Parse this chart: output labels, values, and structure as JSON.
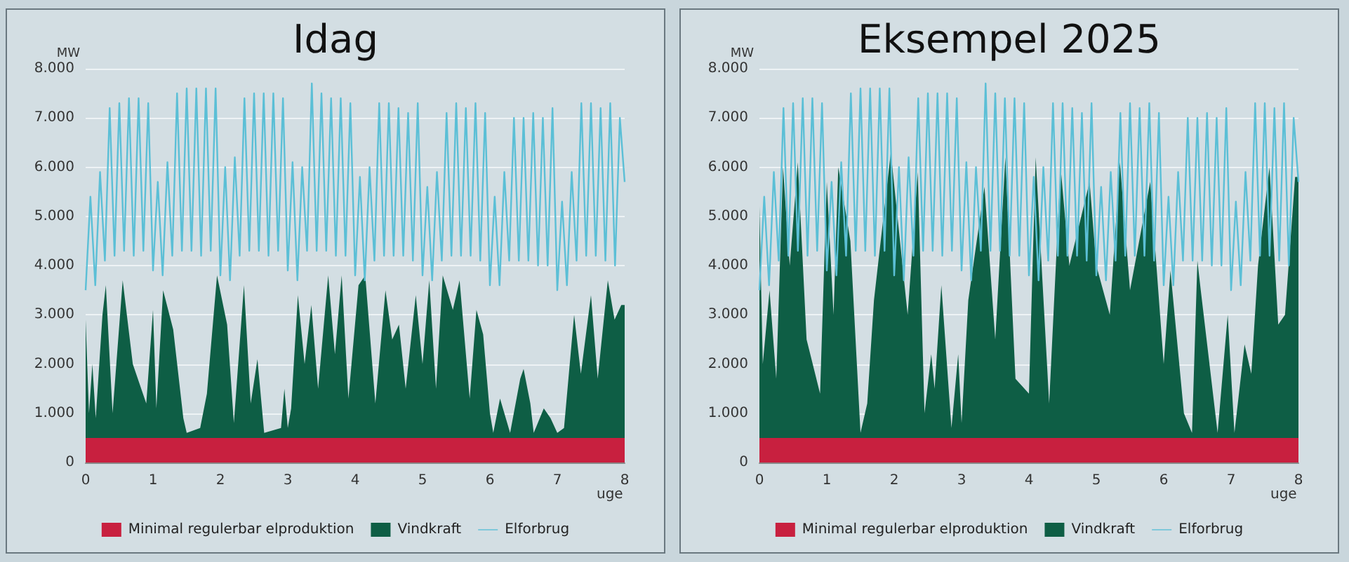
{
  "chart_data": [
    {
      "type": "area",
      "title": "Idag",
      "ylabel": "MW",
      "xlabel": "uge",
      "stacked": true,
      "legend": "bottom",
      "grid": "y",
      "xlim": [
        0,
        8
      ],
      "xticks": [
        0,
        1,
        2,
        3,
        4,
        5,
        6,
        7,
        8
      ],
      "ylim": [
        0,
        8000
      ],
      "yticks": [
        0,
        {
          "value": 1000,
          "label": "1.000"
        },
        {
          "value": 2000,
          "label": "2.000"
        },
        {
          "value": 3000,
          "label": "3.000"
        },
        {
          "value": 4000,
          "label": "4.000"
        },
        {
          "value": 5000,
          "label": "5.000"
        },
        {
          "value": 6000,
          "label": "6.000"
        },
        {
          "value": 7000,
          "label": "7.000"
        },
        {
          "value": 8000,
          "label": "8.000"
        }
      ],
      "series": [
        {
          "name": "Minimal regulerbar elproduktion",
          "color": "#c8203f",
          "x": [
            0,
            0.05,
            0.1,
            0.15,
            0.25,
            0.3,
            0.4,
            0.55,
            0.7,
            0.9,
            1.0,
            1.05,
            1.15,
            1.3,
            1.45,
            1.5,
            1.7,
            1.8,
            1.95,
            2.1,
            2.2,
            2.35,
            2.45,
            2.55,
            2.65,
            2.9,
            2.95,
            3.0,
            3.05,
            3.15,
            3.25,
            3.35,
            3.45,
            3.6,
            3.7,
            3.8,
            3.9,
            4.05,
            4.15,
            4.3,
            4.45,
            4.55,
            4.65,
            4.75,
            4.9,
            5.0,
            5.1,
            5.2,
            5.3,
            5.45,
            5.55,
            5.7,
            5.8,
            5.9,
            6.0,
            6.05,
            6.15,
            6.3,
            6.45,
            6.5,
            6.6,
            6.65,
            6.8,
            6.9,
            7.0,
            7.1,
            7.25,
            7.35,
            7.5,
            7.6,
            7.75,
            7.85,
            7.95,
            8.0
          ],
          "values": [
            500,
            500,
            500,
            500,
            500,
            500,
            500,
            500,
            500,
            500,
            500,
            500,
            500,
            500,
            500,
            500,
            500,
            500,
            500,
            500,
            500,
            500,
            500,
            500,
            500,
            500,
            500,
            500,
            500,
            500,
            500,
            500,
            500,
            500,
            500,
            500,
            500,
            500,
            500,
            500,
            500,
            500,
            500,
            500,
            500,
            500,
            500,
            500,
            500,
            500,
            500,
            500,
            500,
            500,
            500,
            500,
            500,
            500,
            500,
            500,
            500,
            500,
            500,
            500,
            500,
            500,
            500,
            500,
            500,
            500,
            500,
            500,
            500,
            500
          ]
        },
        {
          "name": "Vindkraft",
          "color": "#0e5e45",
          "x": [
            0,
            0.05,
            0.1,
            0.15,
            0.25,
            0.3,
            0.4,
            0.55,
            0.7,
            0.9,
            1.0,
            1.05,
            1.15,
            1.3,
            1.45,
            1.5,
            1.7,
            1.8,
            1.95,
            2.1,
            2.2,
            2.35,
            2.45,
            2.55,
            2.65,
            2.9,
            2.95,
            3.0,
            3.05,
            3.15,
            3.25,
            3.35,
            3.45,
            3.6,
            3.7,
            3.8,
            3.9,
            4.05,
            4.15,
            4.3,
            4.45,
            4.55,
            4.65,
            4.75,
            4.9,
            5.0,
            5.1,
            5.2,
            5.3,
            5.45,
            5.55,
            5.7,
            5.8,
            5.9,
            6.0,
            6.05,
            6.15,
            6.3,
            6.45,
            6.5,
            6.6,
            6.65,
            6.8,
            6.9,
            7.0,
            7.1,
            7.25,
            7.35,
            7.5,
            7.6,
            7.75,
            7.85,
            7.95,
            8.0
          ],
          "values": [
            2400,
            500,
            1500,
            400,
            2500,
            3100,
            500,
            3200,
            1500,
            700,
            2600,
            600,
            3000,
            2200,
            400,
            100,
            200,
            900,
            3300,
            2300,
            300,
            3100,
            700,
            1600,
            100,
            200,
            1000,
            200,
            600,
            2900,
            1500,
            2700,
            1000,
            3300,
            1700,
            3300,
            800,
            3100,
            3300,
            700,
            3000,
            2000,
            2300,
            1000,
            2900,
            1500,
            3200,
            1000,
            3300,
            2600,
            3200,
            800,
            2600,
            2100,
            500,
            100,
            800,
            100,
            1200,
            1400,
            700,
            100,
            600,
            400,
            100,
            200,
            2500,
            1300,
            2900,
            1200,
            3200,
            2400,
            2700,
            2700
          ]
        },
        {
          "name": "Elforbrug",
          "type": "line",
          "color": "#5bbfd6",
          "x": [
            0,
            0.071,
            0.143,
            0.214,
            0.286,
            0.357,
            0.429,
            0.5,
            0.571,
            0.643,
            0.714,
            0.786,
            0.857,
            0.929,
            1,
            1.071,
            1.143,
            1.214,
            1.286,
            1.357,
            1.429,
            1.5,
            1.571,
            1.643,
            1.714,
            1.786,
            1.857,
            1.929,
            2,
            2.071,
            2.143,
            2.214,
            2.286,
            2.357,
            2.429,
            2.5,
            2.571,
            2.643,
            2.714,
            2.786,
            2.857,
            2.929,
            3,
            3.071,
            3.143,
            3.214,
            3.286,
            3.357,
            3.429,
            3.5,
            3.571,
            3.643,
            3.714,
            3.786,
            3.857,
            3.929,
            4,
            4.071,
            4.143,
            4.214,
            4.286,
            4.357,
            4.429,
            4.5,
            4.571,
            4.643,
            4.714,
            4.786,
            4.857,
            4.929,
            5,
            5.071,
            5.143,
            5.214,
            5.286,
            5.357,
            5.429,
            5.5,
            5.571,
            5.643,
            5.714,
            5.786,
            5.857,
            5.929,
            6,
            6.071,
            6.143,
            6.214,
            6.286,
            6.357,
            6.429,
            6.5,
            6.571,
            6.643,
            6.714,
            6.786,
            6.857,
            6.929,
            7,
            7.071,
            7.143,
            7.214,
            7.286,
            7.357,
            7.429,
            7.5,
            7.571,
            7.643,
            7.714,
            7.786,
            7.857,
            7.929,
            8
          ],
          "values": [
            3500,
            5400,
            3600,
            5900,
            4100,
            7200,
            4200,
            7300,
            4300,
            7400,
            4200,
            7400,
            4300,
            7300,
            3900,
            5700,
            3800,
            6100,
            4200,
            7500,
            4300,
            7600,
            4300,
            7600,
            4200,
            7600,
            4300,
            7600,
            3800,
            6000,
            3700,
            6200,
            4200,
            7400,
            4300,
            7500,
            4300,
            7500,
            4200,
            7500,
            4300,
            7400,
            3900,
            6100,
            3700,
            6000,
            4300,
            7700,
            4300,
            7500,
            4300,
            7400,
            4200,
            7400,
            4200,
            7300,
            3800,
            5800,
            3700,
            6000,
            4100,
            7300,
            4200,
            7300,
            4200,
            7200,
            4200,
            7100,
            4100,
            7300,
            3800,
            5600,
            3700,
            5900,
            4100,
            7100,
            4200,
            7300,
            4200,
            7200,
            4200,
            7300,
            4100,
            7100,
            3600,
            5400,
            3600,
            5900,
            4100,
            7000,
            4100,
            7000,
            4100,
            7100,
            4000,
            7000,
            4000,
            7200,
            3500,
            5300,
            3600,
            5900,
            4100,
            7300,
            4200,
            7300,
            4200,
            7200,
            4100,
            7300,
            4000,
            7000,
            5700
          ]
        }
      ]
    },
    {
      "type": "area",
      "title": "Eksempel 2025",
      "ylabel": "MW",
      "xlabel": "uge",
      "stacked": true,
      "legend": "bottom",
      "grid": "y",
      "xlim": [
        0,
        8
      ],
      "xticks": [
        0,
        1,
        2,
        3,
        4,
        5,
        6,
        7,
        8
      ],
      "ylim": [
        0,
        8000
      ],
      "yticks": [
        0,
        {
          "value": 1000,
          "label": "1.000"
        },
        {
          "value": 2000,
          "label": "2.000"
        },
        {
          "value": 3000,
          "label": "3.000"
        },
        {
          "value": 4000,
          "label": "4.000"
        },
        {
          "value": 5000,
          "label": "5.000"
        },
        {
          "value": 6000,
          "label": "6.000"
        },
        {
          "value": 7000,
          "label": "7.000"
        },
        {
          "value": 8000,
          "label": "8.000"
        }
      ],
      "series": [
        {
          "name": "Minimal regulerbar elproduktion",
          "color": "#c8203f",
          "x": [
            0,
            0.05,
            0.15,
            0.25,
            0.35,
            0.45,
            0.57,
            0.7,
            0.9,
            1.0,
            1.1,
            1.17,
            1.35,
            1.5,
            1.6,
            1.7,
            1.95,
            2.2,
            2.35,
            2.45,
            2.55,
            2.6,
            2.7,
            2.85,
            2.95,
            3.0,
            3.1,
            3.34,
            3.5,
            3.65,
            3.8,
            4.0,
            4.1,
            4.3,
            4.47,
            4.6,
            4.9,
            5.0,
            5.2,
            5.35,
            5.5,
            5.8,
            6.0,
            6.1,
            6.3,
            6.42,
            6.5,
            6.55,
            6.8,
            6.95,
            7.05,
            7.2,
            7.3,
            7.4,
            7.57,
            7.7,
            7.8,
            7.95,
            8.0
          ],
          "values": [
            500,
            500,
            500,
            500,
            500,
            500,
            500,
            500,
            500,
            500,
            500,
            500,
            500,
            500,
            500,
            500,
            500,
            500,
            500,
            500,
            500,
            500,
            500,
            500,
            500,
            500,
            500,
            500,
            500,
            500,
            500,
            500,
            500,
            500,
            500,
            500,
            500,
            500,
            500,
            500,
            500,
            500,
            500,
            500,
            500,
            500,
            500,
            500,
            500,
            500,
            500,
            500,
            500,
            500,
            500,
            500,
            500,
            500,
            500
          ]
        },
        {
          "name": "Vindkraft",
          "color": "#0e5e45",
          "x": [
            0,
            0.05,
            0.15,
            0.25,
            0.35,
            0.45,
            0.57,
            0.7,
            0.9,
            1.0,
            1.1,
            1.17,
            1.35,
            1.5,
            1.6,
            1.7,
            1.95,
            2.2,
            2.35,
            2.45,
            2.55,
            2.6,
            2.7,
            2.85,
            2.95,
            3.0,
            3.1,
            3.34,
            3.5,
            3.65,
            3.8,
            4.0,
            4.1,
            4.3,
            4.47,
            4.6,
            4.9,
            5.0,
            5.2,
            5.35,
            5.5,
            5.8,
            6.0,
            6.1,
            6.3,
            6.42,
            6.5,
            6.55,
            6.8,
            6.95,
            7.05,
            7.2,
            7.3,
            7.4,
            7.57,
            7.7,
            7.8,
            7.95,
            8.0
          ],
          "values": [
            4700,
            1500,
            3000,
            1200,
            5500,
            3500,
            5600,
            2000,
            900,
            5200,
            2500,
            5500,
            4000,
            100,
            700,
            2800,
            5800,
            2500,
            5400,
            500,
            1700,
            1000,
            3100,
            200,
            1700,
            300,
            2800,
            5100,
            2000,
            5700,
            1200,
            900,
            5700,
            700,
            5500,
            3500,
            5200,
            3500,
            2500,
            5600,
            3000,
            5200,
            1500,
            3400,
            500,
            100,
            3600,
            3000,
            100,
            2500,
            100,
            1900,
            1300,
            3500,
            5500,
            2300,
            2500,
            5300,
            5300
          ]
        },
        {
          "name": "Elforbrug",
          "type": "line",
          "color": "#5bbfd6",
          "x": [
            0,
            0.071,
            0.143,
            0.214,
            0.286,
            0.357,
            0.429,
            0.5,
            0.571,
            0.643,
            0.714,
            0.786,
            0.857,
            0.929,
            1,
            1.071,
            1.143,
            1.214,
            1.286,
            1.357,
            1.429,
            1.5,
            1.571,
            1.643,
            1.714,
            1.786,
            1.857,
            1.929,
            2,
            2.071,
            2.143,
            2.214,
            2.286,
            2.357,
            2.429,
            2.5,
            2.571,
            2.643,
            2.714,
            2.786,
            2.857,
            2.929,
            3,
            3.071,
            3.143,
            3.214,
            3.286,
            3.357,
            3.429,
            3.5,
            3.571,
            3.643,
            3.714,
            3.786,
            3.857,
            3.929,
            4,
            4.071,
            4.143,
            4.214,
            4.286,
            4.357,
            4.429,
            4.5,
            4.571,
            4.643,
            4.714,
            4.786,
            4.857,
            4.929,
            5,
            5.071,
            5.143,
            5.214,
            5.286,
            5.357,
            5.429,
            5.5,
            5.571,
            5.643,
            5.714,
            5.786,
            5.857,
            5.929,
            6,
            6.071,
            6.143,
            6.214,
            6.286,
            6.357,
            6.429,
            6.5,
            6.571,
            6.643,
            6.714,
            6.786,
            6.857,
            6.929,
            7,
            7.071,
            7.143,
            7.214,
            7.286,
            7.357,
            7.429,
            7.5,
            7.571,
            7.643,
            7.714,
            7.786,
            7.857,
            7.929,
            8
          ],
          "values": [
            3500,
            5400,
            3600,
            5900,
            4100,
            7200,
            4200,
            7300,
            4300,
            7400,
            4200,
            7400,
            4300,
            7300,
            3900,
            5700,
            3800,
            6100,
            4200,
            7500,
            4300,
            7600,
            4300,
            7600,
            4200,
            7600,
            4300,
            7600,
            3800,
            6000,
            3700,
            6200,
            4200,
            7400,
            4300,
            7500,
            4300,
            7500,
            4200,
            7500,
            4300,
            7400,
            3900,
            6100,
            3700,
            6000,
            4300,
            7700,
            4300,
            7500,
            4300,
            7400,
            4200,
            7400,
            4200,
            7300,
            3800,
            5800,
            3700,
            6000,
            4100,
            7300,
            4200,
            7300,
            4200,
            7200,
            4200,
            7100,
            4100,
            7300,
            3800,
            5600,
            3700,
            5900,
            4100,
            7100,
            4200,
            7300,
            4200,
            7200,
            4200,
            7300,
            4100,
            7100,
            3600,
            5400,
            3600,
            5900,
            4100,
            7000,
            4100,
            7000,
            4100,
            7100,
            4000,
            7000,
            4000,
            7200,
            3500,
            5300,
            3600,
            5900,
            4100,
            7300,
            4200,
            7300,
            4200,
            7200,
            4100,
            7300,
            4000,
            7000,
            5700
          ]
        }
      ]
    }
  ]
}
